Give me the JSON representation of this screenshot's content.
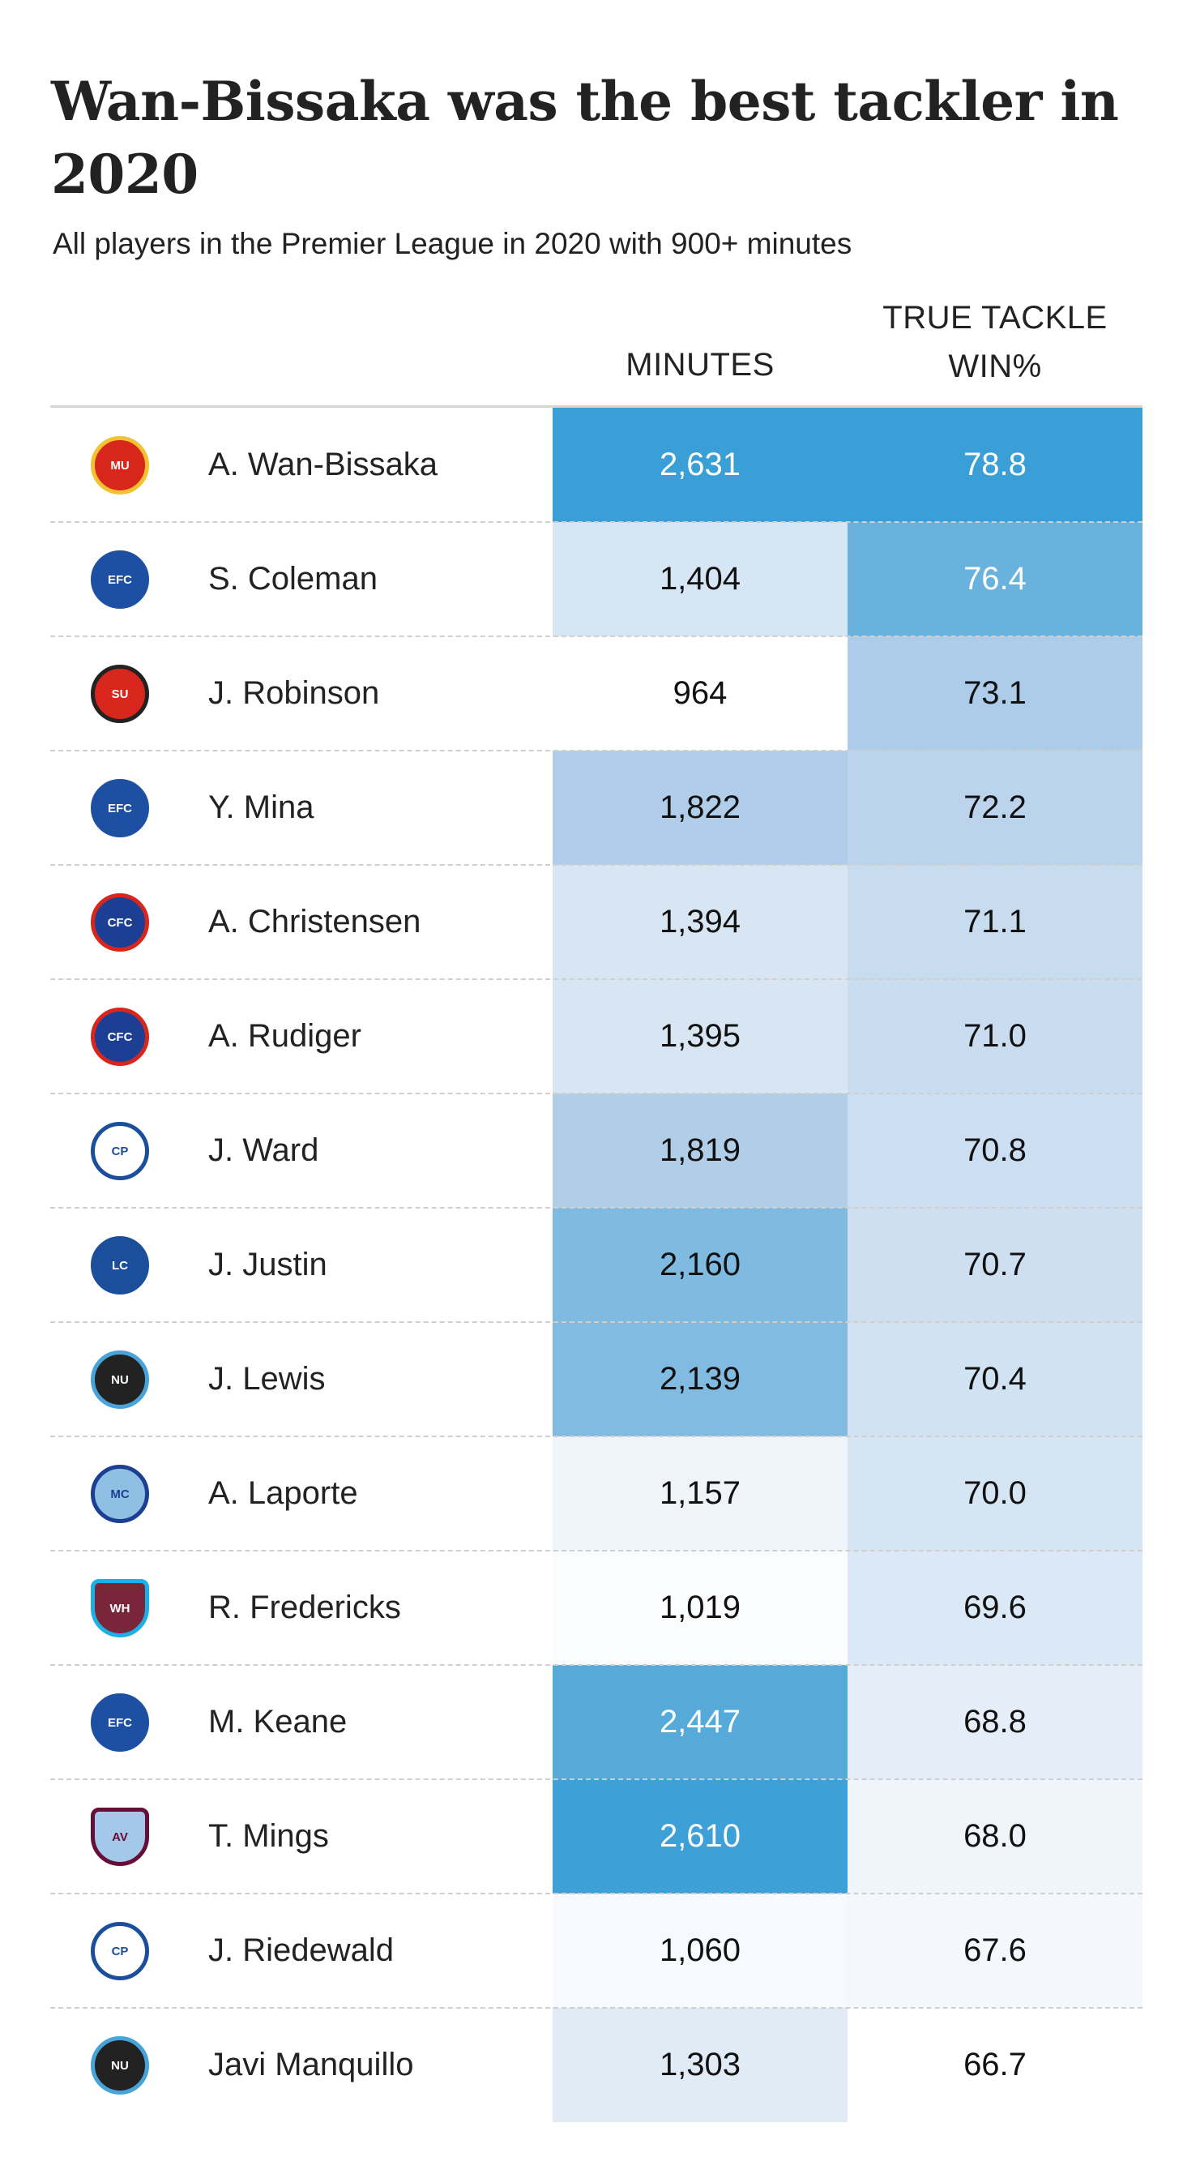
{
  "title": "Wan-Bissaka was the best tackler in 2020",
  "subtitle": "All players in the Premier League in 2020 with 900+ minutes",
  "columns": {
    "minutes": "MINUTES",
    "win_line1": "TRUE TACKLE",
    "win_line2": "WIN%"
  },
  "chart_data": {
    "type": "table",
    "columns": [
      "",
      "MINUTES",
      "TRUE TACKLE WIN%"
    ],
    "rows": [
      {
        "player": "A. Wan-Bissaka",
        "club": "manutd-crest-icon",
        "minutes": "2,631",
        "minutes_value": 2631,
        "win": "78.8",
        "win_value": 78.8
      },
      {
        "player": "S. Coleman",
        "club": "everton-crest-icon",
        "minutes": "1,404",
        "minutes_value": 1404,
        "win": "76.4",
        "win_value": 76.4
      },
      {
        "player": "J. Robinson",
        "club": "sheffield-crest-icon",
        "minutes": "964",
        "minutes_value": 964,
        "win": "73.1",
        "win_value": 73.1
      },
      {
        "player": "Y. Mina",
        "club": "everton-crest-icon",
        "minutes": "1,822",
        "minutes_value": 1822,
        "win": "72.2",
        "win_value": 72.2
      },
      {
        "player": "A. Christensen",
        "club": "chelsea-crest-icon",
        "minutes": "1,394",
        "minutes_value": 1394,
        "win": "71.1",
        "win_value": 71.1
      },
      {
        "player": "A. Rudiger",
        "club": "chelsea-crest-icon",
        "minutes": "1,395",
        "minutes_value": 1395,
        "win": "71.0",
        "win_value": 71.0
      },
      {
        "player": "J. Ward",
        "club": "palace-crest-icon",
        "minutes": "1,819",
        "minutes_value": 1819,
        "win": "70.8",
        "win_value": 70.8
      },
      {
        "player": "J. Justin",
        "club": "leicester-crest-icon",
        "minutes": "2,160",
        "minutes_value": 2160,
        "win": "70.7",
        "win_value": 70.7
      },
      {
        "player": "J. Lewis",
        "club": "newcastle-crest-icon",
        "minutes": "2,139",
        "minutes_value": 2139,
        "win": "70.4",
        "win_value": 70.4
      },
      {
        "player": "A. Laporte",
        "club": "mancity-crest-icon",
        "minutes": "1,157",
        "minutes_value": 1157,
        "win": "70.0",
        "win_value": 70.0
      },
      {
        "player": "R. Fredericks",
        "club": "westham-crest-icon",
        "minutes": "1,019",
        "minutes_value": 1019,
        "win": "69.6",
        "win_value": 69.6
      },
      {
        "player": "M. Keane",
        "club": "everton-crest-icon",
        "minutes": "2,447",
        "minutes_value": 2447,
        "win": "68.8",
        "win_value": 68.8
      },
      {
        "player": "T. Mings",
        "club": "villa-crest-icon",
        "minutes": "2,610",
        "minutes_value": 2610,
        "win": "68.0",
        "win_value": 68.0
      },
      {
        "player": "J. Riedewald",
        "club": "palace-crest-icon",
        "minutes": "1,060",
        "minutes_value": 1060,
        "win": "67.6",
        "win_value": 67.6
      },
      {
        "player": "Javi Manquillo",
        "club": "newcastle-crest-icon",
        "minutes": "1,303",
        "minutes_value": 1303,
        "win": "66.7",
        "win_value": 66.7
      }
    ]
  },
  "colors": {
    "scale_high": "#3a9fd6",
    "scale_mid": "#b4cfea",
    "scale_low": "#ffffff",
    "text_dark": "#111111",
    "text_light": "#ffffff"
  },
  "crests": {
    "manutd-crest-icon": {
      "bg": "#d9261c",
      "border": "#f2c230",
      "text": "MU"
    },
    "everton-crest-icon": {
      "bg": "#1d4fa3",
      "border": "#1d4fa3",
      "text": "EFC"
    },
    "sheffield-crest-icon": {
      "bg": "#d9261c",
      "border": "#222222",
      "text": "SU"
    },
    "chelsea-crest-icon": {
      "bg": "#1c3f94",
      "border": "#d9261c",
      "text": "CFC"
    },
    "palace-crest-icon": {
      "bg": "#ffffff",
      "border": "#1b4e9b",
      "text": "CP"
    },
    "leicester-crest-icon": {
      "bg": "#1b4e9b",
      "border": "#1b4e9b",
      "text": "LC"
    },
    "newcastle-crest-icon": {
      "bg": "#222222",
      "border": "#47a3d8",
      "text": "NU"
    },
    "mancity-crest-icon": {
      "bg": "#8fc0e4",
      "border": "#1c3f94",
      "text": "MC"
    },
    "westham-crest-icon": {
      "bg": "#7a263a",
      "border": "#1bb1e7",
      "text": "WH"
    },
    "villa-crest-icon": {
      "bg": "#a4c8ea",
      "border": "#670e36",
      "text": "AV"
    }
  }
}
